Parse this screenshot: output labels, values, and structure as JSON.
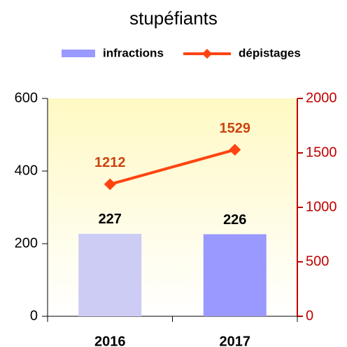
{
  "chart_data": {
    "type": "bar-line",
    "title": "stupéfiants",
    "categories": [
      "2016",
      "2017"
    ],
    "series": [
      {
        "name": "infractions",
        "type": "bar",
        "color": "#9999ff",
        "colors": [
          "#ccccf5",
          "#9999ff"
        ],
        "values": [
          227,
          226
        ]
      },
      {
        "name": "dépistages",
        "type": "line",
        "axis": "y2",
        "color": "#ff4411",
        "label_color": "#cc4411",
        "values": [
          1212,
          1529
        ]
      }
    ],
    "ylim": [
      0,
      600
    ],
    "yticks": [
      0,
      200,
      400,
      600
    ],
    "y2lim": [
      0,
      2000
    ],
    "y2ticks": [
      0,
      500,
      1000,
      1500,
      2000
    ],
    "y2_color": "#c00000"
  }
}
